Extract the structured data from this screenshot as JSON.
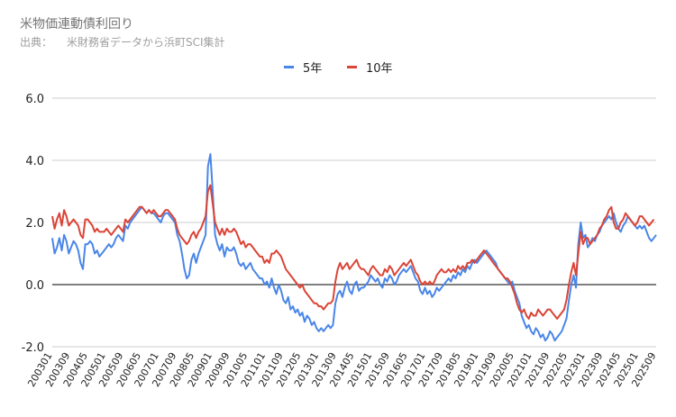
{
  "chart_data": {
    "type": "line",
    "title": "米物価連動債利回り",
    "subtitle_label": "出典：",
    "subtitle_source": "米財務省データから浜町SCI集計",
    "xlabel": "",
    "ylabel": "",
    "ylim": [
      -2.0,
      6.0
    ],
    "yticks": [
      "6.0",
      "4.0",
      "2.0",
      "0.0",
      "-2.0"
    ],
    "ytick_values": [
      6,
      4,
      2,
      0,
      -2
    ],
    "grid": true,
    "legend_position": "top",
    "x_start": "200301",
    "x_tick_labels": [
      "200301",
      "200309",
      "200405",
      "200501",
      "200509",
      "200605",
      "200701",
      "200709",
      "200805",
      "200901",
      "200909",
      "201005",
      "201101",
      "201109",
      "201205",
      "201301",
      "201309",
      "201405",
      "201501",
      "201509",
      "201605",
      "201701",
      "201709",
      "201805",
      "201901",
      "201909",
      "202005",
      "202101",
      "202109",
      "202205",
      "202301",
      "202309",
      "202405",
      "202501",
      "202509"
    ],
    "series": [
      {
        "name": "5年",
        "color": "#4a86e8",
        "values": [
          1.5,
          1.0,
          1.2,
          1.5,
          1.1,
          1.6,
          1.4,
          1.0,
          1.2,
          1.4,
          1.3,
          1.1,
          0.7,
          0.5,
          1.3,
          1.3,
          1.4,
          1.3,
          1.0,
          1.1,
          0.9,
          1.0,
          1.1,
          1.2,
          1.3,
          1.2,
          1.3,
          1.5,
          1.6,
          1.5,
          1.4,
          1.9,
          1.8,
          2.0,
          2.1,
          2.2,
          2.3,
          2.4,
          2.5,
          2.4,
          2.3,
          2.4,
          2.3,
          2.3,
          2.2,
          2.1,
          2.0,
          2.2,
          2.3,
          2.3,
          2.2,
          2.1,
          2.0,
          1.6,
          1.4,
          1.0,
          0.5,
          0.2,
          0.3,
          0.8,
          1.0,
          0.7,
          1.0,
          1.2,
          1.4,
          1.6,
          3.8,
          4.2,
          3.0,
          1.6,
          1.3,
          1.1,
          1.3,
          0.9,
          1.2,
          1.1,
          1.1,
          1.2,
          1.0,
          0.7,
          0.6,
          0.7,
          0.5,
          0.6,
          0.7,
          0.5,
          0.4,
          0.3,
          0.2,
          0.2,
          0.0,
          0.1,
          -0.1,
          0.2,
          -0.1,
          -0.3,
          0.0,
          -0.2,
          -0.5,
          -0.6,
          -0.4,
          -0.8,
          -0.7,
          -0.9,
          -0.8,
          -1.0,
          -0.9,
          -1.2,
          -1.0,
          -1.1,
          -1.3,
          -1.2,
          -1.4,
          -1.5,
          -1.4,
          -1.5,
          -1.4,
          -1.3,
          -1.4,
          -1.3,
          -0.6,
          -0.3,
          -0.2,
          -0.4,
          -0.1,
          0.1,
          -0.2,
          -0.3,
          0.0,
          0.1,
          -0.2,
          -0.1,
          -0.1,
          0.0,
          0.1,
          0.3,
          0.2,
          0.1,
          0.2,
          0.0,
          -0.1,
          0.2,
          0.1,
          0.3,
          0.2,
          0.0,
          0.1,
          0.3,
          0.4,
          0.5,
          0.4,
          0.5,
          0.6,
          0.4,
          0.2,
          0.1,
          -0.2,
          -0.3,
          -0.1,
          -0.3,
          -0.2,
          -0.4,
          -0.3,
          -0.1,
          -0.2,
          -0.1,
          0.0,
          0.1,
          0.2,
          0.1,
          0.3,
          0.2,
          0.4,
          0.3,
          0.5,
          0.4,
          0.6,
          0.5,
          0.7,
          0.8,
          0.7,
          0.8,
          0.9,
          1.0,
          1.1,
          1.0,
          0.9,
          0.8,
          0.7,
          0.5,
          0.4,
          0.3,
          0.2,
          0.1,
          0.0,
          0.1,
          -0.2,
          -0.4,
          -0.6,
          -1.0,
          -1.2,
          -1.4,
          -1.3,
          -1.5,
          -1.6,
          -1.4,
          -1.5,
          -1.7,
          -1.6,
          -1.8,
          -1.7,
          -1.5,
          -1.6,
          -1.8,
          -1.7,
          -1.6,
          -1.5,
          -1.3,
          -1.1,
          -0.5,
          0.0,
          0.3,
          -0.1,
          1.3,
          2.0,
          1.5,
          1.6,
          1.2,
          1.3,
          1.5,
          1.4,
          1.6,
          1.7,
          1.9,
          2.0,
          2.1,
          2.2,
          2.1,
          2.3,
          2.0,
          1.8,
          1.7,
          1.9,
          2.0,
          2.2,
          2.1,
          2.0,
          1.9,
          1.8,
          1.9,
          1.8,
          1.9,
          1.7,
          1.5,
          1.4,
          1.5,
          1.6
        ]
      },
      {
        "name": "10年",
        "color": "#db4437",
        "values": [
          2.2,
          1.8,
          2.1,
          2.3,
          1.9,
          2.4,
          2.2,
          1.9,
          2.0,
          2.1,
          2.0,
          1.9,
          1.6,
          1.5,
          2.1,
          2.1,
          2.0,
          1.9,
          1.7,
          1.8,
          1.7,
          1.7,
          1.7,
          1.8,
          1.7,
          1.6,
          1.7,
          1.8,
          1.9,
          1.8,
          1.7,
          2.1,
          2.0,
          2.1,
          2.2,
          2.3,
          2.4,
          2.5,
          2.5,
          2.4,
          2.3,
          2.4,
          2.3,
          2.4,
          2.3,
          2.2,
          2.2,
          2.3,
          2.4,
          2.4,
          2.3,
          2.2,
          2.1,
          1.8,
          1.6,
          1.5,
          1.4,
          1.3,
          1.4,
          1.6,
          1.7,
          1.5,
          1.7,
          1.8,
          2.0,
          2.2,
          3.0,
          3.2,
          2.6,
          2.0,
          1.8,
          1.6,
          1.8,
          1.6,
          1.8,
          1.7,
          1.7,
          1.8,
          1.7,
          1.5,
          1.3,
          1.4,
          1.2,
          1.3,
          1.3,
          1.2,
          1.1,
          1.0,
          0.9,
          0.9,
          0.7,
          0.8,
          0.7,
          1.0,
          1.0,
          1.1,
          1.0,
          0.9,
          0.7,
          0.5,
          0.4,
          0.3,
          0.2,
          0.1,
          0.0,
          -0.1,
          0.0,
          -0.2,
          -0.3,
          -0.4,
          -0.5,
          -0.6,
          -0.6,
          -0.7,
          -0.7,
          -0.8,
          -0.7,
          -0.6,
          -0.6,
          -0.5,
          0.1,
          0.5,
          0.7,
          0.5,
          0.6,
          0.7,
          0.5,
          0.6,
          0.7,
          0.8,
          0.6,
          0.5,
          0.5,
          0.4,
          0.3,
          0.5,
          0.6,
          0.5,
          0.4,
          0.3,
          0.3,
          0.5,
          0.4,
          0.6,
          0.5,
          0.3,
          0.4,
          0.5,
          0.6,
          0.7,
          0.6,
          0.7,
          0.8,
          0.6,
          0.4,
          0.3,
          0.1,
          0.0,
          0.1,
          0.0,
          0.1,
          0.0,
          0.1,
          0.3,
          0.4,
          0.5,
          0.4,
          0.4,
          0.5,
          0.4,
          0.5,
          0.4,
          0.6,
          0.5,
          0.6,
          0.5,
          0.7,
          0.7,
          0.8,
          0.7,
          0.8,
          0.9,
          1.0,
          1.1,
          1.0,
          0.9,
          0.8,
          0.7,
          0.6,
          0.5,
          0.4,
          0.3,
          0.2,
          0.2,
          0.1,
          -0.1,
          -0.3,
          -0.6,
          -0.8,
          -0.9,
          -0.8,
          -1.0,
          -1.1,
          -0.9,
          -1.0,
          -1.0,
          -0.8,
          -0.9,
          -1.0,
          -0.9,
          -0.8,
          -0.8,
          -0.9,
          -1.0,
          -1.1,
          -1.0,
          -0.9,
          -0.8,
          -0.5,
          0.0,
          0.4,
          0.7,
          0.3,
          1.0,
          1.7,
          1.3,
          1.5,
          1.5,
          1.3,
          1.4,
          1.5,
          1.6,
          1.8,
          1.9,
          2.1,
          2.2,
          2.4,
          2.5,
          2.0,
          1.8,
          1.8,
          2.0,
          2.1,
          2.3,
          2.2,
          2.1,
          2.0,
          1.9,
          2.0,
          2.2,
          2.2,
          2.1,
          2.0,
          1.9,
          2.0,
          2.1
        ]
      }
    ]
  }
}
